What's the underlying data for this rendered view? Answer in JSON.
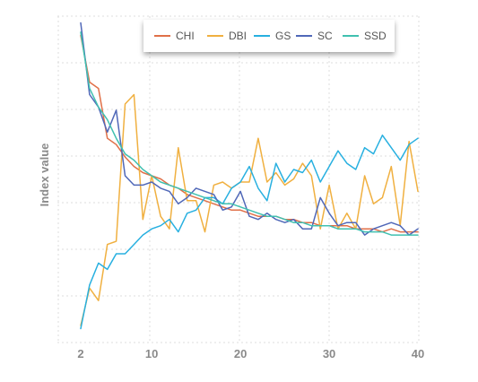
{
  "chart_data": {
    "type": "line",
    "title": "",
    "xlabel": "",
    "ylabel": "Index value",
    "xlim": [
      2,
      40
    ],
    "ylim": [
      0,
      1
    ],
    "xticks": [
      2,
      10,
      20,
      30,
      40
    ],
    "grid": true,
    "legend_position": "top-right",
    "x": [
      2,
      3,
      4,
      5,
      6,
      7,
      8,
      9,
      10,
      11,
      12,
      13,
      14,
      15,
      16,
      17,
      18,
      19,
      20,
      21,
      22,
      23,
      24,
      25,
      26,
      27,
      28,
      29,
      30,
      31,
      32,
      33,
      34,
      35,
      36,
      37,
      38,
      39,
      40
    ],
    "series": [
      {
        "name": "CHI",
        "color": "#e07048",
        "values": [
          0.95,
          0.8,
          0.78,
          0.62,
          0.6,
          0.56,
          0.53,
          0.51,
          0.5,
          0.49,
          0.47,
          0.46,
          0.44,
          0.43,
          0.42,
          0.41,
          0.4,
          0.39,
          0.39,
          0.38,
          0.37,
          0.37,
          0.37,
          0.36,
          0.36,
          0.35,
          0.35,
          0.34,
          0.34,
          0.34,
          0.34,
          0.33,
          0.33,
          0.33,
          0.32,
          0.33,
          0.32,
          0.32,
          0.32
        ]
      },
      {
        "name": "DBI",
        "color": "#f0b040",
        "values": [
          0.02,
          0.14,
          0.1,
          0.28,
          0.29,
          0.73,
          0.76,
          0.36,
          0.5,
          0.37,
          0.33,
          0.59,
          0.42,
          0.42,
          0.32,
          0.47,
          0.48,
          0.46,
          0.48,
          0.48,
          0.62,
          0.48,
          0.51,
          0.47,
          0.49,
          0.54,
          0.5,
          0.33,
          0.47,
          0.33,
          0.38,
          0.33,
          0.5,
          0.41,
          0.43,
          0.53,
          0.34,
          0.61,
          0.45
        ]
      },
      {
        "name": "GS",
        "color": "#28b0e0",
        "values": [
          0.01,
          0.15,
          0.22,
          0.2,
          0.25,
          0.25,
          0.28,
          0.31,
          0.33,
          0.34,
          0.36,
          0.32,
          0.38,
          0.39,
          0.43,
          0.43,
          0.41,
          0.46,
          0.48,
          0.53,
          0.46,
          0.42,
          0.54,
          0.48,
          0.52,
          0.51,
          0.55,
          0.48,
          0.53,
          0.58,
          0.54,
          0.52,
          0.59,
          0.57,
          0.63,
          0.59,
          0.55,
          0.6,
          0.62
        ]
      },
      {
        "name": "SC",
        "color": "#5068b8",
        "values": [
          0.99,
          0.76,
          0.72,
          0.64,
          0.71,
          0.5,
          0.47,
          0.47,
          0.48,
          0.46,
          0.45,
          0.41,
          0.43,
          0.46,
          0.45,
          0.44,
          0.39,
          0.4,
          0.45,
          0.37,
          0.36,
          0.38,
          0.36,
          0.35,
          0.36,
          0.33,
          0.33,
          0.43,
          0.38,
          0.34,
          0.35,
          0.35,
          0.31,
          0.33,
          0.34,
          0.35,
          0.34,
          0.31,
          0.33
        ]
      },
      {
        "name": "SSD",
        "color": "#40c0b0",
        "values": [
          0.96,
          0.78,
          0.72,
          0.68,
          0.62,
          0.57,
          0.55,
          0.52,
          0.5,
          0.48,
          0.47,
          0.46,
          0.45,
          0.44,
          0.43,
          0.42,
          0.41,
          0.41,
          0.4,
          0.39,
          0.38,
          0.37,
          0.37,
          0.36,
          0.35,
          0.35,
          0.34,
          0.34,
          0.34,
          0.33,
          0.33,
          0.33,
          0.32,
          0.32,
          0.32,
          0.31,
          0.31,
          0.31,
          0.31
        ]
      }
    ]
  }
}
